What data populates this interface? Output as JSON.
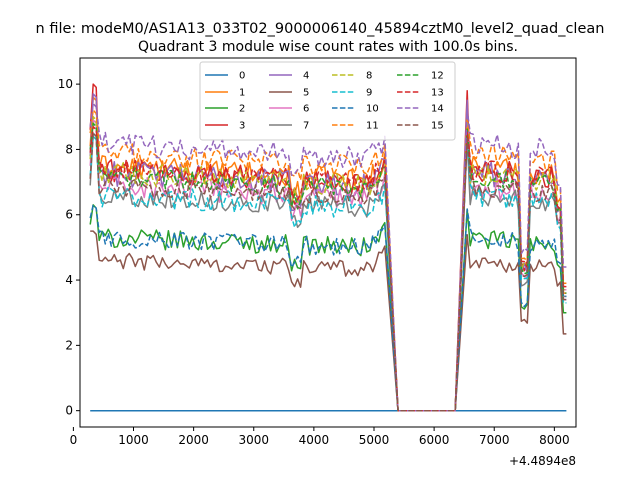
{
  "chart_data": {
    "type": "line",
    "suptitle": "n file: modeM0/AS1A13_033T02_9000006140_45894cztM0_level2_quad_clean",
    "title": "Quadrant 3 module wise count rates with 100.0s bins.",
    "xlabel": "",
    "ylabel": "",
    "x_offset_label": "+4.4894e8",
    "xlim": [
      110,
      8360
    ],
    "ylim": [
      -0.5,
      10.8
    ],
    "xticks": [
      0,
      1000,
      2000,
      3000,
      4000,
      5000,
      6000,
      7000,
      8000
    ],
    "yticks": [
      0,
      2,
      4,
      6,
      8,
      10
    ],
    "grid": false,
    "legend_placement": "upper-center",
    "legend_columns": 4,
    "gap": [
      5400,
      6350
    ],
    "segments": [
      {
        "start": 280,
        "end": 5200,
        "step": 50
      },
      {
        "start": 6550,
        "end": 8200,
        "step": 50
      }
    ],
    "series": [
      {
        "name": "0",
        "color": "#1f77b4",
        "dash": "solid",
        "base": 0.0,
        "peak": 0.0,
        "end": 0.0,
        "amp": 0.0,
        "level": 0.0
      },
      {
        "name": "1",
        "color": "#ff7f0e",
        "dash": "solid",
        "base": 8.1,
        "peak": 9.6,
        "end": 3.6,
        "amp": 0.35,
        "level": 7.5
      },
      {
        "name": "2",
        "color": "#2ca02c",
        "dash": "solid",
        "base": 5.7,
        "peak": 6.3,
        "end": 3.0,
        "amp": 0.3,
        "level": 5.3
      },
      {
        "name": "3",
        "color": "#d62728",
        "dash": "solid",
        "base": 8.6,
        "peak": 10.0,
        "end": 3.8,
        "amp": 0.35,
        "level": 7.4
      },
      {
        "name": "4",
        "color": "#9467bd",
        "dash": "solid",
        "base": 7.8,
        "peak": 9.7,
        "end": 3.4,
        "amp": 0.4,
        "level": 7.3
      },
      {
        "name": "5",
        "color": "#8c564b",
        "dash": "solid",
        "base": 5.5,
        "peak": 5.5,
        "end": 2.35,
        "amp": 0.25,
        "level": 4.6
      },
      {
        "name": "6",
        "color": "#e377c2",
        "dash": "solid",
        "base": 7.5,
        "peak": 8.9,
        "end": 3.7,
        "amp": 0.35,
        "level": 6.9
      },
      {
        "name": "7",
        "color": "#7f7f7f",
        "dash": "solid",
        "base": 6.9,
        "peak": 8.5,
        "end": 3.5,
        "amp": 0.3,
        "level": 6.6
      },
      {
        "name": "8",
        "color": "#bcbd22",
        "dash": "dashed",
        "base": 7.7,
        "peak": 9.0,
        "end": 3.7,
        "amp": 0.35,
        "level": 7.3
      },
      {
        "name": "9",
        "color": "#17becf",
        "dash": "dashed",
        "base": 7.2,
        "peak": 8.4,
        "end": 3.3,
        "amp": 0.35,
        "level": 6.6
      },
      {
        "name": "10",
        "color": "#1f77b4",
        "dash": "dashed",
        "base": 5.9,
        "peak": 6.3,
        "end": 3.5,
        "amp": 0.3,
        "level": 5.3
      },
      {
        "name": "11",
        "color": "#ff7f0e",
        "dash": "dashed",
        "base": 8.5,
        "peak": 9.2,
        "end": 3.9,
        "amp": 0.35,
        "level": 7.9
      },
      {
        "name": "12",
        "color": "#2ca02c",
        "dash": "dashed",
        "base": 8.0,
        "peak": 8.8,
        "end": 3.6,
        "amp": 0.3,
        "level": 7.2
      },
      {
        "name": "13",
        "color": "#d62728",
        "dash": "dashed",
        "base": 7.9,
        "peak": 8.7,
        "end": 3.8,
        "amp": 0.35,
        "level": 7.4
      },
      {
        "name": "14",
        "color": "#9467bd",
        "dash": "dashed",
        "base": 8.7,
        "peak": 9.4,
        "end": 4.4,
        "amp": 0.35,
        "level": 8.2
      },
      {
        "name": "15",
        "color": "#8c564b",
        "dash": "dashed",
        "base": 7.1,
        "peak": 8.5,
        "end": 3.4,
        "amp": 0.3,
        "level": 6.9
      }
    ]
  }
}
